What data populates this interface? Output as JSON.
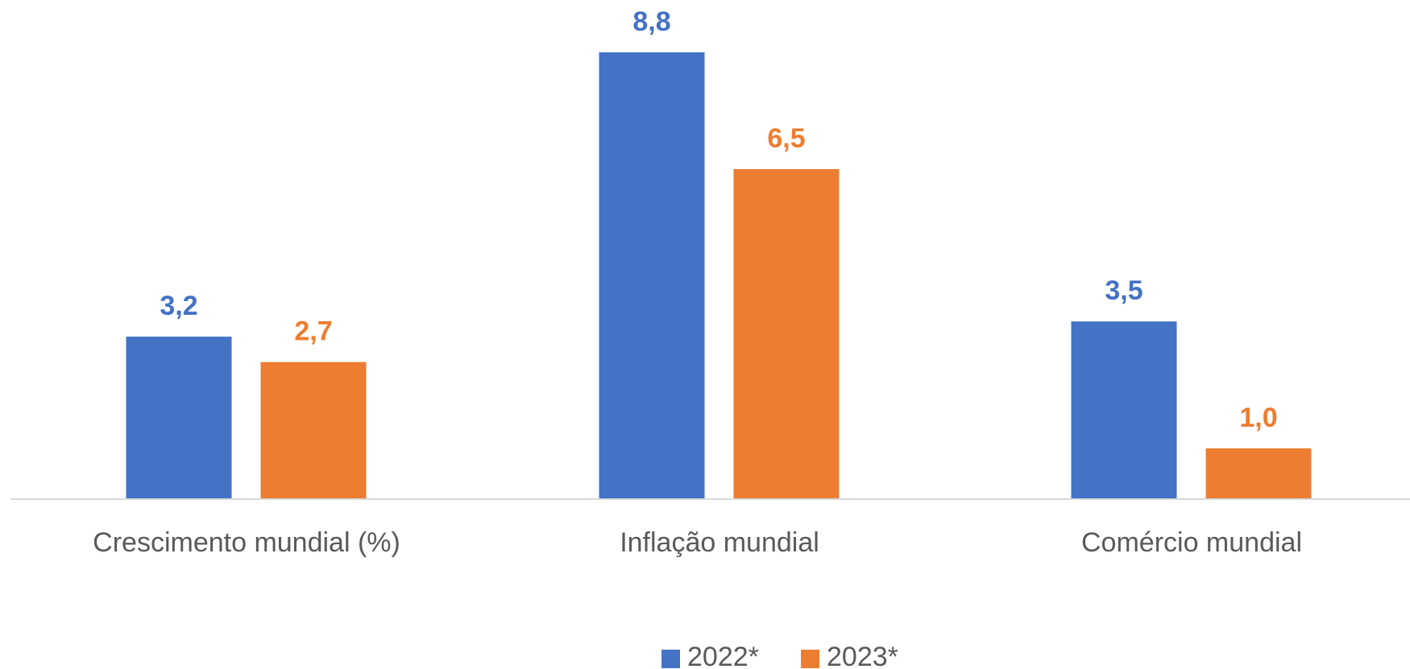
{
  "chart_data": {
    "type": "bar",
    "categories": [
      "Crescimento mundial (%)",
      "Inflação mundial",
      "Comércio mundial"
    ],
    "series": [
      {
        "name": "2022*",
        "color": "#4472c4",
        "values": [
          3.2,
          8.8,
          3.5
        ],
        "value_labels": [
          "3,2",
          "8,8",
          "3,5"
        ]
      },
      {
        "name": "2023*",
        "color": "#ed7d31",
        "values": [
          2.7,
          6.5,
          1.0
        ],
        "value_labels": [
          "2,7",
          "6,5",
          "1,0"
        ]
      }
    ],
    "legend": "bottom"
  }
}
